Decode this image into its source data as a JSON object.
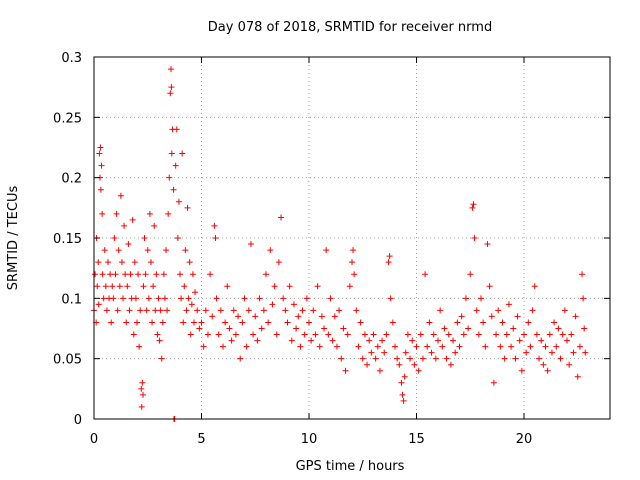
{
  "chart_data": {
    "type": "scatter",
    "title": "Day 078 of 2018, SRMTID for receiver nrmd",
    "xlabel": "GPS time / hours",
    "ylabel": "SRMTID / TECUs",
    "xlim": [
      0,
      24
    ],
    "ylim": [
      0,
      0.3
    ],
    "xticks": [
      0,
      5,
      10,
      15,
      20
    ],
    "xtick_labels": [
      "0",
      "5",
      "10",
      "15",
      "20"
    ],
    "yticks": [
      0,
      0.05,
      0.1,
      0.15,
      0.2,
      0.25,
      0.3
    ],
    "ytick_labels": [
      "0",
      "0.05",
      "0.1",
      "0.15",
      "0.2",
      "0.25",
      "0.3"
    ],
    "grid": true,
    "marker": "+",
    "color": "#ff0000",
    "series": [
      {
        "name": "SRMTID",
        "points": [
          [
            0.0,
            0.09
          ],
          [
            0.05,
            0.12
          ],
          [
            0.1,
            0.08
          ],
          [
            0.12,
            0.15
          ],
          [
            0.15,
            0.11
          ],
          [
            0.2,
            0.13
          ],
          [
            0.22,
            0.095
          ],
          [
            0.25,
            0.22
          ],
          [
            0.28,
            0.2
          ],
          [
            0.3,
            0.225
          ],
          [
            0.32,
            0.19
          ],
          [
            0.35,
            0.21
          ],
          [
            0.38,
            0.17
          ],
          [
            0.4,
            0.12
          ],
          [
            0.45,
            0.1
          ],
          [
            0.5,
            0.14
          ],
          [
            0.55,
            0.11
          ],
          [
            0.6,
            0.09
          ],
          [
            0.65,
            0.13
          ],
          [
            0.7,
            0.1
          ],
          [
            0.75,
            0.12
          ],
          [
            0.8,
            0.08
          ],
          [
            0.85,
            0.11
          ],
          [
            0.9,
            0.1
          ],
          [
            0.95,
            0.15
          ],
          [
            1.0,
            0.12
          ],
          [
            1.05,
            0.17
          ],
          [
            1.1,
            0.09
          ],
          [
            1.15,
            0.14
          ],
          [
            1.2,
            0.11
          ],
          [
            1.25,
            0.185
          ],
          [
            1.3,
            0.13
          ],
          [
            1.35,
            0.1
          ],
          [
            1.4,
            0.16
          ],
          [
            1.45,
            0.12
          ],
          [
            1.5,
            0.08
          ],
          [
            1.55,
            0.11
          ],
          [
            1.6,
            0.145
          ],
          [
            1.65,
            0.09
          ],
          [
            1.7,
            0.12
          ],
          [
            1.75,
            0.1
          ],
          [
            1.8,
            0.165
          ],
          [
            1.85,
            0.07
          ],
          [
            1.9,
            0.13
          ],
          [
            1.95,
            0.1
          ],
          [
            2.0,
            0.08
          ],
          [
            2.05,
            0.12
          ],
          [
            2.1,
            0.06
          ],
          [
            2.15,
            0.09
          ],
          [
            2.2,
            0.025
          ],
          [
            2.22,
            0.01
          ],
          [
            2.25,
            0.03
          ],
          [
            2.28,
            0.02
          ],
          [
            2.3,
            0.11
          ],
          [
            2.35,
            0.15
          ],
          [
            2.4,
            0.12
          ],
          [
            2.45,
            0.09
          ],
          [
            2.5,
            0.14
          ],
          [
            2.55,
            0.1
          ],
          [
            2.6,
            0.17
          ],
          [
            2.65,
            0.13
          ],
          [
            2.7,
            0.08
          ],
          [
            2.75,
            0.11
          ],
          [
            2.8,
            0.16
          ],
          [
            2.85,
            0.09
          ],
          [
            2.9,
            0.12
          ],
          [
            2.95,
            0.07
          ],
          [
            3.0,
            0.1
          ],
          [
            3.05,
            0.065
          ],
          [
            3.1,
            0.09
          ],
          [
            3.15,
            0.05
          ],
          [
            3.2,
            0.08
          ],
          [
            3.25,
            0.12
          ],
          [
            3.3,
            0.1
          ],
          [
            3.35,
            0.14
          ],
          [
            3.4,
            0.09
          ],
          [
            3.45,
            0.17
          ],
          [
            3.5,
            0.2
          ],
          [
            3.55,
            0.27
          ],
          [
            3.58,
            0.29
          ],
          [
            3.6,
            0.275
          ],
          [
            3.62,
            0.22
          ],
          [
            3.65,
            0.24
          ],
          [
            3.7,
            0.19
          ],
          [
            3.72,
            0.0
          ],
          [
            3.75,
            0.0
          ],
          [
            3.8,
            0.21
          ],
          [
            3.85,
            0.24
          ],
          [
            3.9,
            0.15
          ],
          [
            3.95,
            0.18
          ],
          [
            4.0,
            0.12
          ],
          [
            4.05,
            0.1
          ],
          [
            4.1,
            0.22
          ],
          [
            4.15,
            0.08
          ],
          [
            4.2,
            0.11
          ],
          [
            4.25,
            0.14
          ],
          [
            4.3,
            0.09
          ],
          [
            4.35,
            0.175
          ],
          [
            4.4,
            0.1
          ],
          [
            4.45,
            0.13
          ],
          [
            4.5,
            0.07
          ],
          [
            4.55,
            0.095
          ],
          [
            4.6,
            0.12
          ],
          [
            4.65,
            0.08
          ],
          [
            4.7,
            0.105
          ],
          [
            4.8,
            0.09
          ],
          [
            4.9,
            0.075
          ],
          [
            5.0,
            0.08
          ],
          [
            5.1,
            0.06
          ],
          [
            5.2,
            0.09
          ],
          [
            5.3,
            0.07
          ],
          [
            5.4,
            0.12
          ],
          [
            5.5,
            0.085
          ],
          [
            5.6,
            0.16
          ],
          [
            5.65,
            0.15
          ],
          [
            5.7,
            0.1
          ],
          [
            5.8,
            0.07
          ],
          [
            5.9,
            0.09
          ],
          [
            6.0,
            0.06
          ],
          [
            6.1,
            0.08
          ],
          [
            6.2,
            0.11
          ],
          [
            6.3,
            0.075
          ],
          [
            6.4,
            0.065
          ],
          [
            6.5,
            0.09
          ],
          [
            6.6,
            0.07
          ],
          [
            6.7,
            0.085
          ],
          [
            6.8,
            0.05
          ],
          [
            6.9,
            0.08
          ],
          [
            7.0,
            0.1
          ],
          [
            7.1,
            0.06
          ],
          [
            7.2,
            0.09
          ],
          [
            7.3,
            0.145
          ],
          [
            7.4,
            0.07
          ],
          [
            7.5,
            0.085
          ],
          [
            7.6,
            0.065
          ],
          [
            7.7,
            0.1
          ],
          [
            7.8,
            0.075
          ],
          [
            7.9,
            0.09
          ],
          [
            8.0,
            0.12
          ],
          [
            8.1,
            0.08
          ],
          [
            8.2,
            0.14
          ],
          [
            8.3,
            0.095
          ],
          [
            8.4,
            0.11
          ],
          [
            8.5,
            0.07
          ],
          [
            8.6,
            0.13
          ],
          [
            8.7,
            0.167
          ],
          [
            8.8,
            0.1
          ],
          [
            8.9,
            0.09
          ],
          [
            9.0,
            0.08
          ],
          [
            9.1,
            0.11
          ],
          [
            9.2,
            0.065
          ],
          [
            9.3,
            0.095
          ],
          [
            9.4,
            0.075
          ],
          [
            9.5,
            0.085
          ],
          [
            9.6,
            0.06
          ],
          [
            9.7,
            0.09
          ],
          [
            9.8,
            0.07
          ],
          [
            9.9,
            0.1
          ],
          [
            10.0,
            0.08
          ],
          [
            10.1,
            0.065
          ],
          [
            10.2,
            0.09
          ],
          [
            10.3,
            0.07
          ],
          [
            10.4,
            0.11
          ],
          [
            10.5,
            0.06
          ],
          [
            10.6,
            0.085
          ],
          [
            10.7,
            0.075
          ],
          [
            10.8,
            0.14
          ],
          [
            10.9,
            0.07
          ],
          [
            11.0,
            0.1
          ],
          [
            11.1,
            0.065
          ],
          [
            11.2,
            0.085
          ],
          [
            11.3,
            0.06
          ],
          [
            11.4,
            0.09
          ],
          [
            11.5,
            0.05
          ],
          [
            11.6,
            0.075
          ],
          [
            11.7,
            0.04
          ],
          [
            11.8,
            0.07
          ],
          [
            11.9,
            0.11
          ],
          [
            12.0,
            0.13
          ],
          [
            12.05,
            0.14
          ],
          [
            12.1,
            0.12
          ],
          [
            12.2,
            0.09
          ],
          [
            12.3,
            0.06
          ],
          [
            12.4,
            0.08
          ],
          [
            12.5,
            0.05
          ],
          [
            12.6,
            0.07
          ],
          [
            12.7,
            0.045
          ],
          [
            12.8,
            0.065
          ],
          [
            12.9,
            0.055
          ],
          [
            13.0,
            0.07
          ],
          [
            13.1,
            0.05
          ],
          [
            13.2,
            0.06
          ],
          [
            13.3,
            0.04
          ],
          [
            13.4,
            0.065
          ],
          [
            13.5,
            0.055
          ],
          [
            13.6,
            0.07
          ],
          [
            13.7,
            0.13
          ],
          [
            13.75,
            0.135
          ],
          [
            13.8,
            0.1
          ],
          [
            13.9,
            0.08
          ],
          [
            14.0,
            0.06
          ],
          [
            14.1,
            0.05
          ],
          [
            14.2,
            0.045
          ],
          [
            14.3,
            0.03
          ],
          [
            14.35,
            0.02
          ],
          [
            14.4,
            0.015
          ],
          [
            14.45,
            0.035
          ],
          [
            14.5,
            0.055
          ],
          [
            14.6,
            0.07
          ],
          [
            14.7,
            0.05
          ],
          [
            14.8,
            0.065
          ],
          [
            14.9,
            0.045
          ],
          [
            15.0,
            0.06
          ],
          [
            15.1,
            0.04
          ],
          [
            15.2,
            0.07
          ],
          [
            15.3,
            0.05
          ],
          [
            15.4,
            0.12
          ],
          [
            15.5,
            0.06
          ],
          [
            15.6,
            0.08
          ],
          [
            15.7,
            0.055
          ],
          [
            15.8,
            0.07
          ],
          [
            15.9,
            0.05
          ],
          [
            16.0,
            0.065
          ],
          [
            16.1,
            0.09
          ],
          [
            16.2,
            0.06
          ],
          [
            16.3,
            0.075
          ],
          [
            16.4,
            0.05
          ],
          [
            16.5,
            0.07
          ],
          [
            16.6,
            0.045
          ],
          [
            16.7,
            0.065
          ],
          [
            16.8,
            0.055
          ],
          [
            16.9,
            0.08
          ],
          [
            17.0,
            0.06
          ],
          [
            17.1,
            0.085
          ],
          [
            17.2,
            0.07
          ],
          [
            17.3,
            0.1
          ],
          [
            17.4,
            0.075
          ],
          [
            17.5,
            0.12
          ],
          [
            17.6,
            0.175
          ],
          [
            17.65,
            0.178
          ],
          [
            17.7,
            0.15
          ],
          [
            17.8,
            0.09
          ],
          [
            17.9,
            0.07
          ],
          [
            18.0,
            0.1
          ],
          [
            18.1,
            0.08
          ],
          [
            18.2,
            0.06
          ],
          [
            18.3,
            0.145
          ],
          [
            18.4,
            0.11
          ],
          [
            18.5,
            0.085
          ],
          [
            18.6,
            0.03
          ],
          [
            18.7,
            0.07
          ],
          [
            18.8,
            0.09
          ],
          [
            18.9,
            0.06
          ],
          [
            19.0,
            0.08
          ],
          [
            19.1,
            0.05
          ],
          [
            19.2,
            0.07
          ],
          [
            19.3,
            0.095
          ],
          [
            19.4,
            0.06
          ],
          [
            19.5,
            0.075
          ],
          [
            19.6,
            0.05
          ],
          [
            19.7,
            0.085
          ],
          [
            19.8,
            0.065
          ],
          [
            19.9,
            0.04
          ],
          [
            20.0,
            0.07
          ],
          [
            20.1,
            0.055
          ],
          [
            20.2,
            0.08
          ],
          [
            20.3,
            0.06
          ],
          [
            20.4,
            0.09
          ],
          [
            20.5,
            0.11
          ],
          [
            20.6,
            0.07
          ],
          [
            20.7,
            0.05
          ],
          [
            20.8,
            0.065
          ],
          [
            20.9,
            0.045
          ],
          [
            21.0,
            0.06
          ],
          [
            21.1,
            0.04
          ],
          [
            21.2,
            0.07
          ],
          [
            21.3,
            0.055
          ],
          [
            21.4,
            0.08
          ],
          [
            21.5,
            0.06
          ],
          [
            21.6,
            0.075
          ],
          [
            21.7,
            0.05
          ],
          [
            21.8,
            0.07
          ],
          [
            21.9,
            0.09
          ],
          [
            22.0,
            0.065
          ],
          [
            22.1,
            0.045
          ],
          [
            22.2,
            0.07
          ],
          [
            22.3,
            0.055
          ],
          [
            22.4,
            0.085
          ],
          [
            22.5,
            0.035
          ],
          [
            22.6,
            0.06
          ],
          [
            22.7,
            0.12
          ],
          [
            22.75,
            0.1
          ],
          [
            22.8,
            0.075
          ],
          [
            22.85,
            0.055
          ]
        ]
      }
    ]
  }
}
